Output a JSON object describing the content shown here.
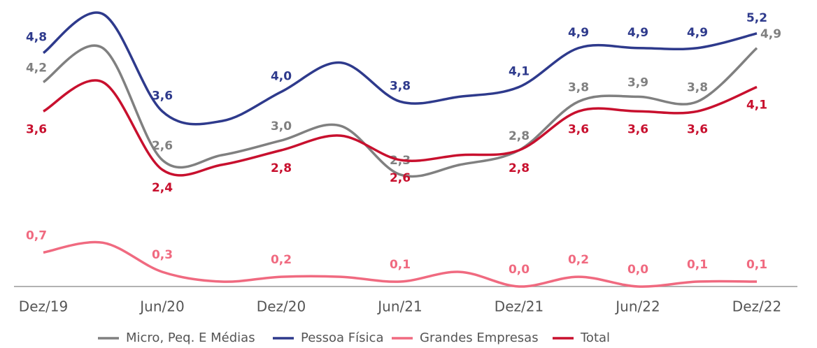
{
  "chart_data": {
    "type": "line",
    "categories": [
      "Dez/19",
      null,
      "Jun/20",
      null,
      "Dez/20",
      null,
      "Jun/21",
      null,
      "Dez/21",
      null,
      "Jun/22",
      null,
      "Dez/22"
    ],
    "ylim": [
      0,
      5.6
    ],
    "series": [
      {
        "name": "Micro, Peq. E Médias",
        "color": "#808080",
        "values": [
          4.2,
          4.9,
          2.6,
          2.7,
          3.0,
          3.3,
          2.3,
          2.5,
          2.8,
          3.8,
          3.9,
          3.8,
          4.9
        ],
        "value_labels": [
          "4,2",
          null,
          "2,6",
          null,
          "3,0",
          null,
          "2,3",
          null,
          "2,8",
          "3,8",
          "3,9",
          "3,8",
          "4,9"
        ]
      },
      {
        "name": "Pessoa Física",
        "color": "#2e3a8c",
        "values": [
          4.8,
          5.6,
          3.6,
          3.4,
          4.0,
          4.6,
          3.8,
          3.9,
          4.1,
          4.9,
          4.9,
          4.9,
          5.2
        ],
        "value_labels": [
          "4,8",
          null,
          "3,6",
          null,
          "4,0",
          null,
          "3,8",
          null,
          "4,1",
          "4,9",
          "4,9",
          "4,9",
          "5,2"
        ]
      },
      {
        "name": "Grandes Empresas",
        "color": "#f06a80",
        "values": [
          0.7,
          0.9,
          0.3,
          0.1,
          0.2,
          0.2,
          0.1,
          0.3,
          0.0,
          0.2,
          0.0,
          0.1,
          0.1
        ],
        "value_labels": [
          "0,7",
          null,
          "0,3",
          null,
          "0,2",
          null,
          "0,1",
          null,
          "0,0",
          "0,2",
          "0,0",
          "0,1",
          "0,1"
        ]
      },
      {
        "name": "Total",
        "color": "#c8102e",
        "values": [
          3.6,
          4.2,
          2.4,
          2.5,
          2.8,
          3.1,
          2.6,
          2.7,
          2.8,
          3.6,
          3.6,
          3.6,
          4.1
        ],
        "value_labels": [
          "3,6",
          null,
          "2,4",
          null,
          "2,8",
          null,
          "2,6",
          null,
          "2,8",
          "3,6",
          "3,6",
          "3,6",
          "4,1"
        ]
      }
    ]
  }
}
